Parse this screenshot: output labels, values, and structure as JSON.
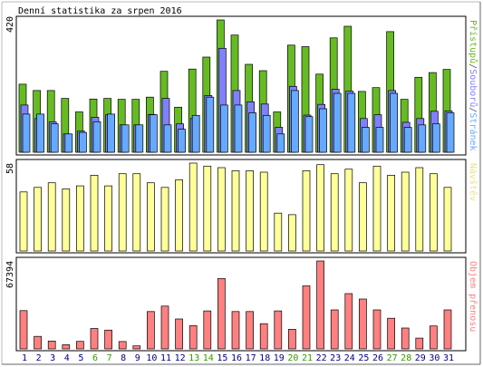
{
  "title": "Denní statistika za srpen 2016",
  "panel1": {
    "ymax_label": "420",
    "legend": [
      {
        "text": "Stránek",
        "color": "#66aaff"
      },
      {
        "text": "/",
        "color": "#555555"
      },
      {
        "text": "Souborů",
        "color": "#8080ff"
      },
      {
        "text": "/",
        "color": "#555555"
      },
      {
        "text": "Přístupů",
        "color": "#66bb22"
      }
    ]
  },
  "panel2": {
    "ymax_label": "58",
    "legend": [
      {
        "text": "Návštěv",
        "color": "#e8e090"
      }
    ]
  },
  "panel3": {
    "ymax_label": "67394",
    "legend": [
      {
        "text": "Objem přenosu",
        "color": "#ff8080"
      }
    ]
  },
  "colors": {
    "hits": "#66bb22",
    "files": "#8080ff",
    "pages": "#66aaff",
    "visits": "#ffff99",
    "kbytes": "#ff8080",
    "weekday_label": "#000080",
    "weekend_label": "#339900"
  },
  "chart_data": [
    {
      "type": "bar",
      "title": "Denní statistika za srpen 2016",
      "categories": [
        "1",
        "2",
        "3",
        "4",
        "5",
        "6",
        "7",
        "8",
        "9",
        "10",
        "11",
        "12",
        "13",
        "14",
        "15",
        "16",
        "17",
        "18",
        "19",
        "20",
        "21",
        "22",
        "23",
        "24",
        "25",
        "26",
        "27",
        "28",
        "29",
        "30",
        "31"
      ],
      "weekend_days": [
        "6",
        "7",
        "13",
        "14",
        "20",
        "21",
        "27",
        "28"
      ],
      "ylim": [
        0,
        420
      ],
      "series": [
        {
          "name": "Přístupů",
          "values": [
            216,
            196,
            196,
            171,
            128,
            169,
            171,
            168,
            168,
            175,
            257,
            143,
            264,
            302,
            420,
            372,
            279,
            259,
            128,
            340,
            335,
            248,
            363,
            400,
            193,
            205,
            383,
            168,
            238,
            253,
            263
          ]
        },
        {
          "name": "Souborů",
          "values": [
            150,
            107,
            96,
            58,
            67,
            111,
            119,
            87,
            87,
            120,
            171,
            90,
            107,
            180,
            330,
            196,
            160,
            153,
            79,
            209,
            118,
            152,
            200,
            194,
            107,
            119,
            196,
            95,
            107,
            130,
            131
          ]
        },
        {
          "name": "Stránek",
          "values": [
            121,
            121,
            90,
            58,
            63,
            97,
            121,
            87,
            87,
            119,
            87,
            73,
            117,
            175,
            150,
            150,
            125,
            117,
            58,
            196,
            113,
            138,
            187,
            187,
            79,
            79,
            187,
            79,
            87,
            90,
            125
          ]
        }
      ]
    },
    {
      "type": "bar",
      "categories": [
        "1",
        "2",
        "3",
        "4",
        "5",
        "6",
        "7",
        "8",
        "9",
        "10",
        "11",
        "12",
        "13",
        "14",
        "15",
        "16",
        "17",
        "18",
        "19",
        "20",
        "21",
        "22",
        "23",
        "24",
        "25",
        "26",
        "27",
        "28",
        "29",
        "30",
        "31"
      ],
      "ylim": [
        0,
        58
      ],
      "series": [
        {
          "name": "Návštěv",
          "values": [
            39,
            42,
            45,
            41,
            43,
            50,
            43,
            51,
            51,
            45,
            42,
            47,
            58,
            56,
            55,
            53,
            53,
            52,
            25,
            24,
            53,
            57,
            51,
            54,
            45,
            56,
            50,
            52,
            55,
            51,
            42
          ]
        }
      ]
    },
    {
      "type": "bar",
      "categories": [
        "1",
        "2",
        "3",
        "4",
        "5",
        "6",
        "7",
        "8",
        "9",
        "10",
        "11",
        "12",
        "13",
        "14",
        "15",
        "16",
        "17",
        "18",
        "19",
        "20",
        "21",
        "22",
        "23",
        "24",
        "25",
        "26",
        "27",
        "28",
        "29",
        "30",
        "31"
      ],
      "ylim": [
        0,
        67394
      ],
      "series": [
        {
          "name": "Objem přenosu",
          "values": [
            29300,
            9600,
            6000,
            3200,
            5800,
            15600,
            14400,
            5600,
            2300,
            28600,
            32800,
            22900,
            17800,
            29100,
            54000,
            28600,
            28600,
            19300,
            29100,
            15000,
            48300,
            67394,
            29900,
            42400,
            38200,
            29900,
            23500,
            16000,
            8300,
            17600,
            29900
          ]
        }
      ]
    }
  ]
}
